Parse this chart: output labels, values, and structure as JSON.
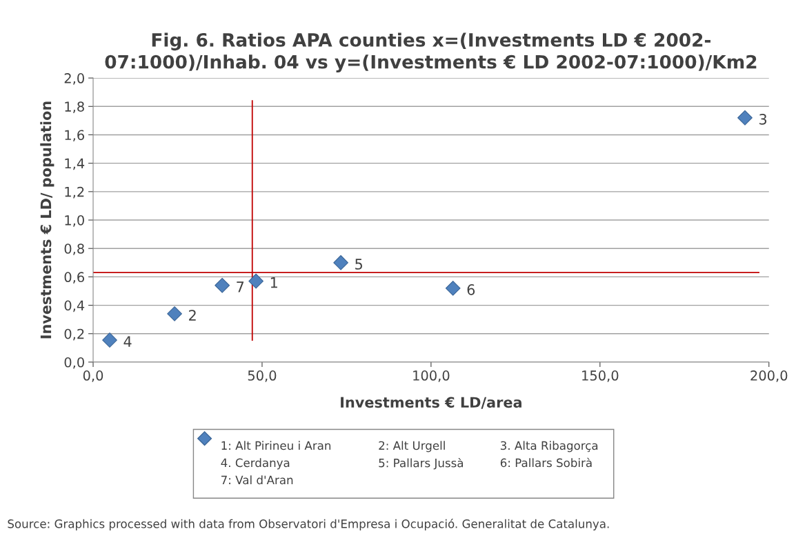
{
  "chart_data": {
    "type": "scatter",
    "title": "Fig. 6. Ratios APA counties x=(Investments LD € 2002-\n07:1000)/Inhab. 04 vs y=(Investments € LD 2002-07:1000)/Km2",
    "xlabel": "Investments € LD/area",
    "ylabel": "Investments € LD/ population",
    "xlim": [
      0,
      200
    ],
    "ylim": [
      0,
      2
    ],
    "xticks": [
      {
        "value": 0,
        "label": "0,0"
      },
      {
        "value": 50,
        "label": "50,0"
      },
      {
        "value": 100,
        "label": "100,0"
      },
      {
        "value": 150,
        "label": "150,0"
      },
      {
        "value": 200,
        "label": "200,0"
      }
    ],
    "yticks": [
      {
        "value": 0,
        "label": "0,0"
      },
      {
        "value": 0.2,
        "label": "0,2"
      },
      {
        "value": 0.4,
        "label": "0,4"
      },
      {
        "value": 0.6,
        "label": "0,6"
      },
      {
        "value": 0.8,
        "label": "0,8"
      },
      {
        "value": 1.0,
        "label": "1,0"
      },
      {
        "value": 1.2,
        "label": "1,2"
      },
      {
        "value": 1.4,
        "label": "1,4"
      },
      {
        "value": 1.6,
        "label": "1,6"
      },
      {
        "value": 1.8,
        "label": "1,8"
      },
      {
        "value": 2.0,
        "label": "2,0"
      }
    ],
    "grid": "y",
    "marker": "diamond",
    "series": [
      {
        "type": "scatter",
        "color": "#4f81bd",
        "x": [
          48.2,
          24.1,
          192.9,
          4.9,
          73.3,
          106.5,
          38.2
        ],
        "values": [
          0.57,
          0.34,
          1.72,
          0.155,
          0.7,
          0.52,
          0.54
        ]
      },
      {
        "type": "line",
        "color": "#c00000",
        "marker": "none",
        "x": [
          47.1,
          47.1
        ],
        "values": [
          0.155,
          1.84
        ]
      },
      {
        "type": "line",
        "color": "#c00000",
        "marker": "none",
        "x": [
          0,
          197
        ],
        "values": [
          0.63,
          0.63
        ]
      }
    ],
    "annotations": [
      {
        "text": "1",
        "x": 48.2,
        "y": 0.57
      },
      {
        "text": "2",
        "x": 24.1,
        "y": 0.34
      },
      {
        "text": "3",
        "x": 192.9,
        "y": 1.72
      },
      {
        "text": "4",
        "x": 4.9,
        "y": 0.155
      },
      {
        "text": "5",
        "x": 73.3,
        "y": 0.7
      },
      {
        "text": "6",
        "x": 106.5,
        "y": 0.52
      },
      {
        "text": "7",
        "x": 38.2,
        "y": 0.54
      },
      "1: Alt Pirineu i Aran",
      "2: Alt Urgell",
      "3. Alta Ribagorça",
      "4. Cerdanya",
      "5: Pallars Jussà",
      "6: Pallars Sobirà",
      "7: Val d'Aran",
      "Source: Graphics processed with data from Observatori d'Empresa i Ocupació. Generalitat de Catalunya."
    ]
  }
}
